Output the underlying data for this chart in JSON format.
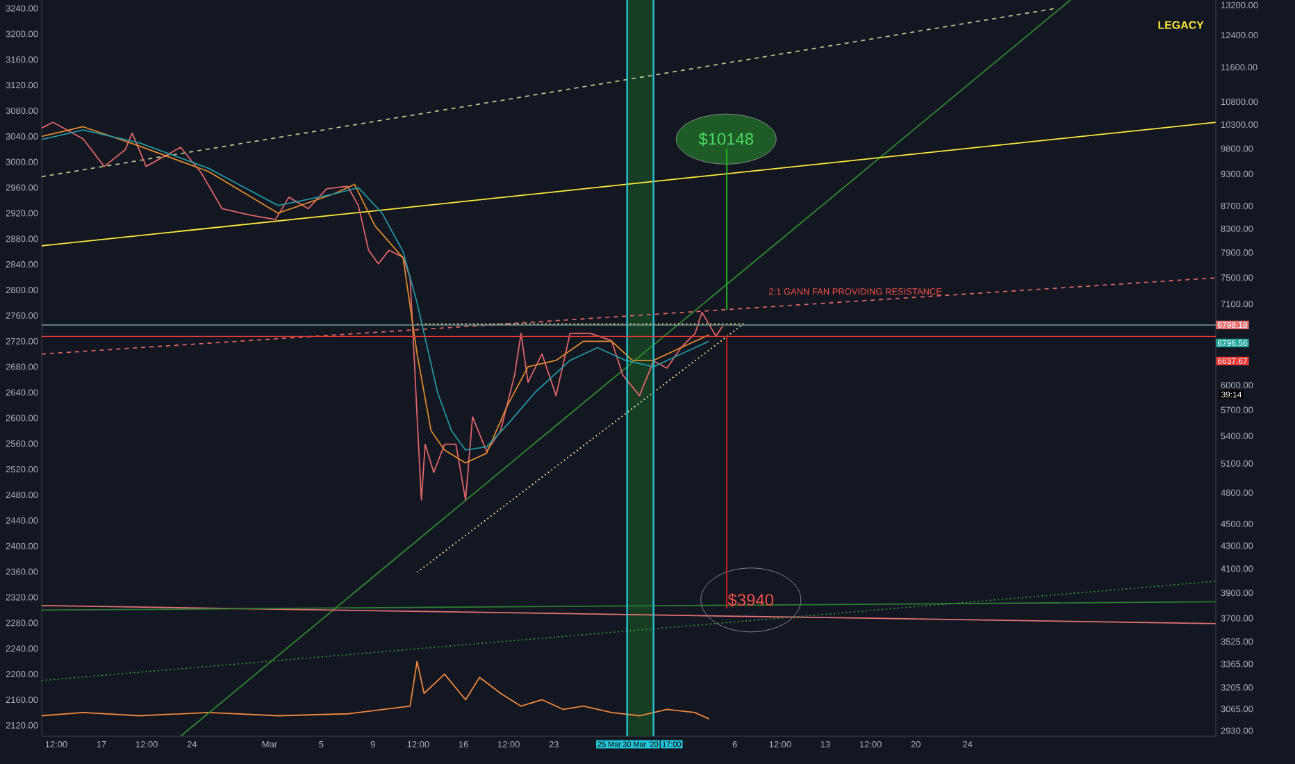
{
  "chart_data": {
    "type": "line",
    "xlim": [
      "2020-02-12T09:00",
      "2020-05-13T05:00"
    ],
    "ylim": [
      2103,
      3253
    ],
    "y2lim": [
      2897,
      13340
    ],
    "log": "y2",
    "xticks": [
      {
        "value": "2020-02-13T12:00",
        "label": "12:00"
      },
      {
        "value": "2020-02-17",
        "label": "17"
      },
      {
        "value": "2020-02-20T12:00",
        "label": "12:00"
      },
      {
        "value": "2020-02-24",
        "label": "24"
      },
      {
        "value": "2020-03-01",
        "label": "Mar"
      },
      {
        "value": "2020-03-05",
        "label": "5"
      },
      {
        "value": "2020-03-09",
        "label": "9"
      },
      {
        "value": "2020-03-12T12:00",
        "label": "12:00"
      },
      {
        "value": "2020-03-16",
        "label": "16"
      },
      {
        "value": "2020-03-19T12:00",
        "label": "12:00"
      },
      {
        "value": "2020-03-23",
        "label": "23"
      },
      {
        "value": "2020-04-06",
        "label": "6"
      },
      {
        "value": "2020-04-09T12:00",
        "label": "12:00"
      },
      {
        "value": "2020-04-13",
        "label": "13"
      },
      {
        "value": "2020-04-16T12:00",
        "label": "12:00"
      },
      {
        "value": "2020-04-20",
        "label": "20"
      },
      {
        "value": "2020-04-24",
        "label": "24"
      }
    ],
    "yticks": [
      {
        "value": 3240,
        "label": "3240.00"
      },
      {
        "value": 3200,
        "label": "3200.00"
      },
      {
        "value": 3160,
        "label": "3160.00"
      },
      {
        "value": 3120,
        "label": "3120.00"
      },
      {
        "value": 3080,
        "label": "3080.00"
      },
      {
        "value": 3040,
        "label": "3040.00"
      },
      {
        "value": 3000,
        "label": "3000.00"
      },
      {
        "value": 2960,
        "label": "2960.00"
      },
      {
        "value": 2920,
        "label": "2920.00"
      },
      {
        "value": 2880,
        "label": "2880.00"
      },
      {
        "value": 2840,
        "label": "2840.00"
      },
      {
        "value": 2800,
        "label": "2800.00"
      },
      {
        "value": 2760,
        "label": "2760.00"
      },
      {
        "value": 2720,
        "label": "2720.00"
      },
      {
        "value": 2680,
        "label": "2680.00"
      },
      {
        "value": 2640,
        "label": "2640.00"
      },
      {
        "value": 2600,
        "label": "2600.00"
      },
      {
        "value": 2560,
        "label": "2560.00"
      },
      {
        "value": 2520,
        "label": "2520.00"
      },
      {
        "value": 2480,
        "label": "2480.00"
      },
      {
        "value": 2440,
        "label": "2440.00"
      },
      {
        "value": 2400,
        "label": "2400.00"
      },
      {
        "value": 2360,
        "label": "2360.00"
      },
      {
        "value": 2320,
        "label": "2320.00"
      },
      {
        "value": 2280,
        "label": "2280.00"
      },
      {
        "value": 2240,
        "label": "2240.00"
      },
      {
        "value": 2200,
        "label": "2200.00"
      },
      {
        "value": 2160,
        "label": "2160.00"
      },
      {
        "value": 2120,
        "label": "2120.00"
      }
    ],
    "y2ticks": [
      {
        "value": 13200,
        "label": "13200.00"
      },
      {
        "value": 12400,
        "label": "12400.00"
      },
      {
        "value": 11600,
        "label": "11600.00"
      },
      {
        "value": 10800,
        "label": "10800.00"
      },
      {
        "value": 10300,
        "label": "10300.00"
      },
      {
        "value": 9800,
        "label": "9800.00"
      },
      {
        "value": 9300,
        "label": "9300.00"
      },
      {
        "value": 8700,
        "label": "8700.00"
      },
      {
        "value": 8300,
        "label": "8300.00"
      },
      {
        "value": 7900,
        "label": "7900.00"
      },
      {
        "value": 7500,
        "label": "7500.00"
      },
      {
        "value": 7100,
        "label": "7100.00"
      },
      {
        "value": 6000,
        "label": "6000.00"
      },
      {
        "value": 5700,
        "label": "5700.00"
      },
      {
        "value": 5400,
        "label": "5400.00"
      },
      {
        "value": 5100,
        "label": "5100.00"
      },
      {
        "value": 4800,
        "label": "4800.00"
      },
      {
        "value": 4500,
        "label": "4500.00"
      },
      {
        "value": 4300,
        "label": "4300.00"
      },
      {
        "value": 4100,
        "label": "4100.00"
      },
      {
        "value": 3900,
        "label": "3900.00"
      },
      {
        "value": 3700,
        "label": "3700.00"
      },
      {
        "value": 3525,
        "label": "3525.00"
      },
      {
        "value": 3365,
        "label": "3365.00"
      },
      {
        "value": 3205,
        "label": "3205.00"
      },
      {
        "value": 3065,
        "label": "3065.00"
      },
      {
        "value": 2930,
        "label": "2930.00"
      }
    ],
    "bands": [
      {
        "axis": "x",
        "from": "2020-03-28T16:00",
        "to": "2020-03-30T17:00",
        "color": "#173d24"
      }
    ],
    "ref_lines": [
      {
        "axis": "x",
        "value": "2020-03-28T16:00",
        "color": "#26c6da"
      },
      {
        "axis": "x",
        "value": "2020-03-30T17:00",
        "color": "#26c6da"
      },
      {
        "axis": "y2",
        "value": 6798.18,
        "label": "6798.18",
        "color": "#e57373"
      },
      {
        "axis": "y2",
        "value": 6796.56,
        "label": "6796.56",
        "color": "#26a69a"
      },
      {
        "axis": "y2",
        "value": 6637.67,
        "label": "6637.67",
        "color": "#e53935"
      }
    ],
    "series": [
      {
        "color": "#f0883e",
        "x": [
          "2020-02-12T09:00",
          "2020-02-15T14:00",
          "2020-02-19T22:00",
          "2020-02-25T07:00",
          "2020-03-01T16:00",
          "2020-03-07T01:00",
          "2020-03-11T21:00",
          "2020-03-12T10:00",
          "2020-03-12T23:00",
          "2020-03-14T13:00",
          "2020-03-16T04:00",
          "2020-03-17T06:00",
          "2020-03-18T21:00",
          "2020-03-20T11:00",
          "2020-03-22T02:00",
          "2020-03-23T17:00",
          "2020-03-25T07:00",
          "2020-03-27T11:00",
          "2020-03-29T15:00",
          "2020-03-31T18:00",
          "2020-04-02T22:00",
          "2020-04-04T00:00"
        ],
        "values": [
          2135,
          2140,
          2135,
          2140,
          2135,
          2138,
          2150,
          2220,
          2170,
          2200,
          2160,
          2195,
          2170,
          2150,
          2160,
          2145,
          2150,
          2140,
          2135,
          2145,
          2140,
          2130
        ]
      },
      {
        "color": "#2e8b2e",
        "x": [
          "2020-02-23T03:00",
          "2020-05-01T23:00"
        ],
        "values": [
          2103,
          3253
        ]
      },
      {
        "color": "#b5c98a",
        "line_style": "dashed",
        "x": [
          "2020-02-12T09:00",
          "2020-04-30T21:00"
        ],
        "values": [
          2977,
          3240
        ]
      },
      {
        "color": "#ffeb3b",
        "x": [
          "2020-02-12T09:00",
          "2020-05-13T05:00"
        ],
        "values": [
          2869,
          3062
        ]
      },
      {
        "color": "#e06666",
        "line_style": "dashed",
        "x": [
          "2020-02-12T09:00",
          "2020-05-13T05:00"
        ],
        "values": [
          2700,
          2819
        ]
      },
      {
        "color": "#e57373",
        "x": [
          "2020-02-12T09:00",
          "2020-05-13T05:00"
        ],
        "values": [
          2307,
          2279
        ]
      },
      {
        "color": "#2e7d32",
        "x": [
          "2020-02-12T09:00",
          "2020-05-13T05:00"
        ],
        "values": [
          2300,
          2313
        ]
      },
      {
        "color": "#43a047",
        "line_style": "dotted",
        "x": [
          "2020-02-12T09:00",
          "2020-05-13T05:00"
        ],
        "values": [
          2190,
          2345
        ]
      },
      {
        "color": "#fff59d",
        "line_style": "dotted",
        "x": [
          "2020-03-12T10:00",
          "2020-04-06T16:00"
        ],
        "values": [
          2747,
          2747
        ]
      },
      {
        "color": "#fff59d",
        "line_style": "dotted",
        "x": [
          "2020-03-12T10:00",
          "2020-04-06T16:00"
        ],
        "values": [
          2359,
          2747
        ]
      },
      {
        "color": "#e0656a",
        "x": [
          "2020-02-12T09:00",
          "2020-02-13T06:00",
          "2020-02-15T14:00",
          "2020-02-17T05:00",
          "2020-02-18T20:00",
          "2020-02-19T09:00",
          "2020-02-20T11:00",
          "2020-02-23T03:00",
          "2020-02-24T18:00",
          "2020-02-26T08:00",
          "2020-02-28T12:00",
          "2020-03-01T11:00",
          "2020-03-02T12:00",
          "2020-03-04T00:00",
          "2020-03-05T10:00",
          "2020-03-07T01:00",
          "2020-03-07T21:00",
          "2020-03-08T16:00",
          "2020-03-09T10:00",
          "2020-03-10T06:00",
          "2020-03-11T08:00",
          "2020-03-11T21:00",
          "2020-03-12T05:00",
          "2020-03-12T10:00",
          "2020-03-12T18:00",
          "2020-03-13T01:00",
          "2020-03-13T17:00",
          "2020-03-14T13:00",
          "2020-03-15T10:00",
          "2020-03-16T04:00",
          "2020-03-16T17:00",
          "2020-03-17T19:00",
          "2020-03-18T21:00",
          "2020-03-19T23:00",
          "2020-03-20T11:00",
          "2020-03-21T00:00",
          "2020-03-22T02:00",
          "2020-03-23T04:00",
          "2020-03-24T06:00",
          "2020-03-25T20:00",
          "2020-03-27T11:00",
          "2020-03-28T08:00",
          "2020-03-29T15:00",
          "2020-03-30T17:00",
          "2020-03-31T18:00",
          "2020-04-01T20:00",
          "2020-04-02T22:00",
          "2020-04-03T11:00",
          "2020-04-04T13:00",
          "2020-04-05T01:00"
        ],
        "values": [
          3053,
          3062,
          3036,
          2993,
          3019,
          3045,
          2993,
          3023,
          2982,
          2927,
          2917,
          2910,
          2945,
          2927,
          2958,
          2962,
          2932,
          2862,
          2841,
          2862,
          2851,
          2819,
          2689,
          2602,
          2472,
          2559,
          2515,
          2559,
          2559,
          2472,
          2602,
          2548,
          2580,
          2667,
          2732,
          2656,
          2700,
          2635,
          2732,
          2732,
          2721,
          2667,
          2635,
          2689,
          2678,
          2710,
          2732,
          2765,
          2728,
          2743
        ]
      },
      {
        "color": "#e08a2c",
        "x": [
          "2020-02-12T09:00",
          "2020-02-15T14:00",
          "2020-02-19T22:00",
          "2020-02-25T07:00",
          "2020-03-01T16:00",
          "2020-03-05T23:00",
          "2020-03-07T14:00",
          "2020-03-09T04:00",
          "2020-03-11T08:00",
          "2020-03-12T10:00",
          "2020-03-13T12:00",
          "2020-03-14T13:00",
          "2020-03-16T04:00",
          "2020-03-17T19:00",
          "2020-03-19T10:00",
          "2020-03-21T00:00",
          "2020-03-23T04:00",
          "2020-03-25T07:00",
          "2020-03-27T11:00",
          "2020-03-29T02:00",
          "2020-03-30T17:00",
          "2020-04-01T20:00",
          "2020-04-04T00:00"
        ],
        "values": [
          3040,
          3055,
          3025,
          2985,
          2920,
          2950,
          2965,
          2900,
          2850,
          2700,
          2580,
          2550,
          2530,
          2545,
          2620,
          2680,
          2690,
          2720,
          2720,
          2690,
          2690,
          2710,
          2730
        ]
      },
      {
        "color": "#2196a3",
        "x": [
          "2020-02-12T09:00",
          "2020-02-15T14:00",
          "2020-02-19T22:00",
          "2020-02-25T07:00",
          "2020-03-01T16:00",
          "2020-03-05T23:00",
          "2020-03-07T21:00",
          "2020-03-09T17:00",
          "2020-03-11T08:00",
          "2020-03-12T10:00",
          "2020-03-14T00:00",
          "2020-03-15T02:00",
          "2020-03-16T04:00",
          "2020-03-17T19:00",
          "2020-03-19T10:00",
          "2020-03-21T13:00",
          "2020-03-24T06:00",
          "2020-03-26T09:00",
          "2020-03-28T13:00",
          "2020-03-30T17:00",
          "2020-04-01T20:00",
          "2020-04-04T00:00"
        ],
        "values": [
          3035,
          3050,
          3030,
          2990,
          2932,
          2950,
          2960,
          2920,
          2860,
          2780,
          2640,
          2580,
          2550,
          2555,
          2590,
          2640,
          2690,
          2710,
          2690,
          2680,
          2700,
          2720
        ]
      },
      {
        "color": "#22c322",
        "axis": "y2",
        "x": [
          "2020-04-05T09:00",
          "2020-04-05T09:00"
        ],
        "values": [
          9797,
          7015
        ]
      },
      {
        "color": "#e02020",
        "axis": "y2",
        "x": [
          "2020-04-05T09:00",
          "2020-04-05T09:00"
        ],
        "values": [
          6637.67,
          3776
        ]
      }
    ],
    "annotations": [
      "LEGACY",
      "$10148",
      "$3940",
      "2:1 GANN FAN PROVIDING RESISTANCE",
      "39:14",
      "25 Mar",
      "30 Mar '20",
      "17:00"
    ]
  }
}
